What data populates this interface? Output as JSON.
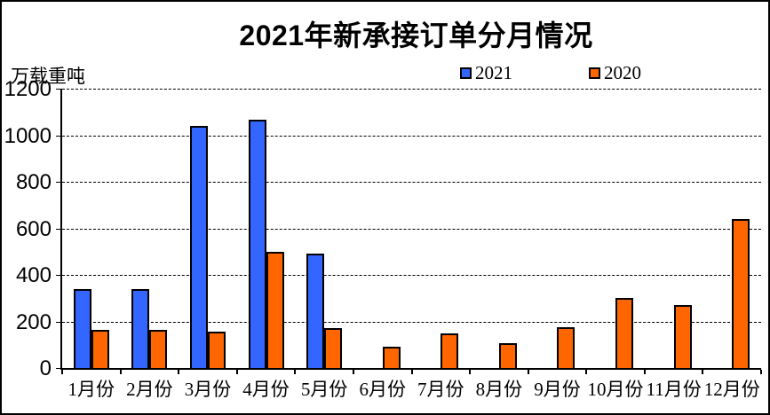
{
  "title": "2021年新承接订单分月情况",
  "unit_label": "万载重吨",
  "legend": [
    {
      "label": "2021",
      "color": "#3366FF"
    },
    {
      "label": "2020",
      "color": "#FF6600"
    }
  ],
  "chart_data": {
    "type": "bar",
    "title": "2021年新承接订单分月情况",
    "ylabel": "万载重吨",
    "xlabel": "",
    "categories": [
      "1月份",
      "2月份",
      "3月份",
      "4月份",
      "5月份",
      "6月份",
      "7月份",
      "8月份",
      "9月份",
      "10月份",
      "11月份",
      "12月份"
    ],
    "series": [
      {
        "name": "2021",
        "color": "#3366FF",
        "values": [
          340,
          340,
          1040,
          1065,
          490,
          0,
          0,
          0,
          0,
          0,
          0,
          0
        ]
      },
      {
        "name": "2020",
        "color": "#FF6600",
        "values": [
          165,
          165,
          155,
          500,
          170,
          90,
          150,
          105,
          175,
          300,
          270,
          640
        ]
      }
    ],
    "ylim": [
      0,
      1200
    ],
    "yticks": [
      0,
      200,
      400,
      600,
      800,
      1000,
      1200
    ],
    "grid": "dashed-horizontal",
    "legend_position": "top-center",
    "bar_border_color": "#000000"
  }
}
